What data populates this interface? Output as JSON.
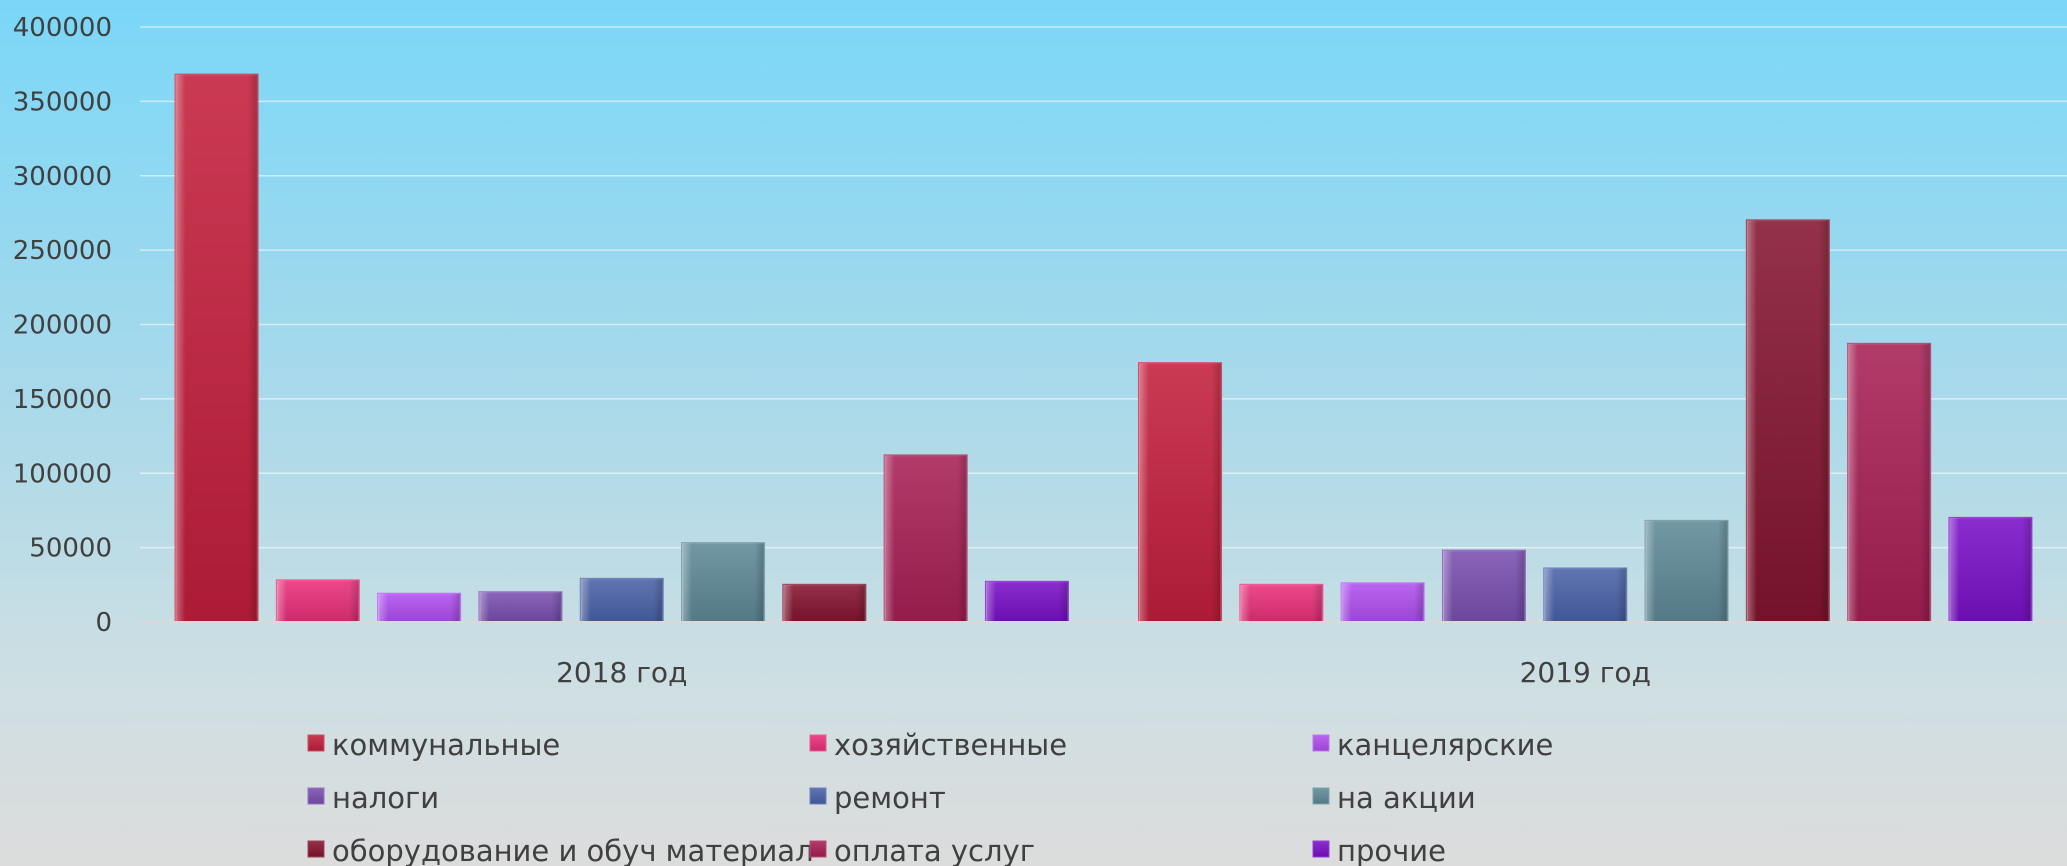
{
  "chart_data": {
    "type": "bar",
    "title": "",
    "xlabel": "",
    "ylabel": "",
    "ylim": [
      0,
      400000
    ],
    "yticks": [
      0,
      50000,
      100000,
      150000,
      200000,
      250000,
      300000,
      350000,
      400000
    ],
    "grid": true,
    "legend_position": "bottom",
    "categories": [
      "2018 год",
      "2019 год"
    ],
    "series": [
      {
        "name": "коммунальные",
        "color": "#c41f3c",
        "values": [
          368000,
          174000
        ]
      },
      {
        "name": "хозяйственные",
        "color": "#e8307a",
        "values": [
          28000,
          25000
        ]
      },
      {
        "name": "канцелярские",
        "color": "#b050f0",
        "values": [
          19000,
          26000
        ]
      },
      {
        "name": "налоги",
        "color": "#7a4fb0",
        "values": [
          20000,
          48000
        ]
      },
      {
        "name": "ремонт",
        "color": "#4a62a8",
        "values": [
          29000,
          36000
        ]
      },
      {
        "name": "на акции",
        "color": "#5f8a98",
        "values": [
          53000,
          68000
        ]
      },
      {
        "name": "оборудование и обуч материал",
        "color": "#851530",
        "values": [
          25000,
          270000
        ]
      },
      {
        "name": "оплата услуг",
        "color": "#a82055",
        "values": [
          112000,
          187000
        ]
      },
      {
        "name": "прочие",
        "color": "#7a10c8",
        "values": [
          27000,
          70000
        ]
      }
    ]
  }
}
